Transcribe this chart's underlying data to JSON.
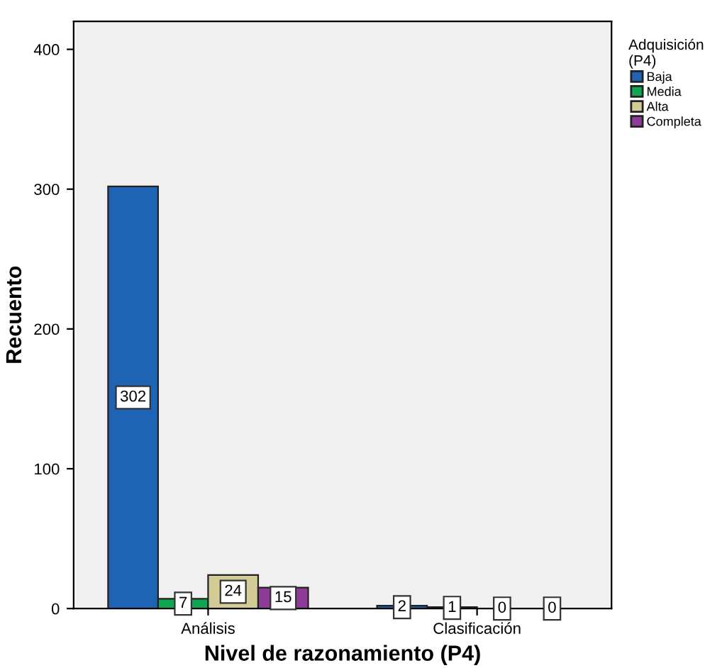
{
  "chart_data": {
    "type": "bar",
    "xlabel": "Nivel de razonamiento (P4)",
    "ylabel": "Recuento",
    "legend_title": "Adquisición\n(P4)",
    "categories": [
      "Análisis",
      "Clasificación"
    ],
    "series": [
      {
        "name": "Baja",
        "color": "#1f64b4",
        "values": [
          302,
          2
        ]
      },
      {
        "name": "Media",
        "color": "#13a650",
        "values": [
          7,
          1
        ]
      },
      {
        "name": "Alta",
        "color": "#d4cc96",
        "values": [
          24,
          0
        ]
      },
      {
        "name": "Completa",
        "color": "#8e3c97",
        "values": [
          15,
          0
        ]
      }
    ],
    "ylim": [
      0,
      420
    ],
    "yticks": [
      0,
      100,
      200,
      300,
      400
    ],
    "data_labels": true,
    "legend": "right",
    "grid": false
  }
}
